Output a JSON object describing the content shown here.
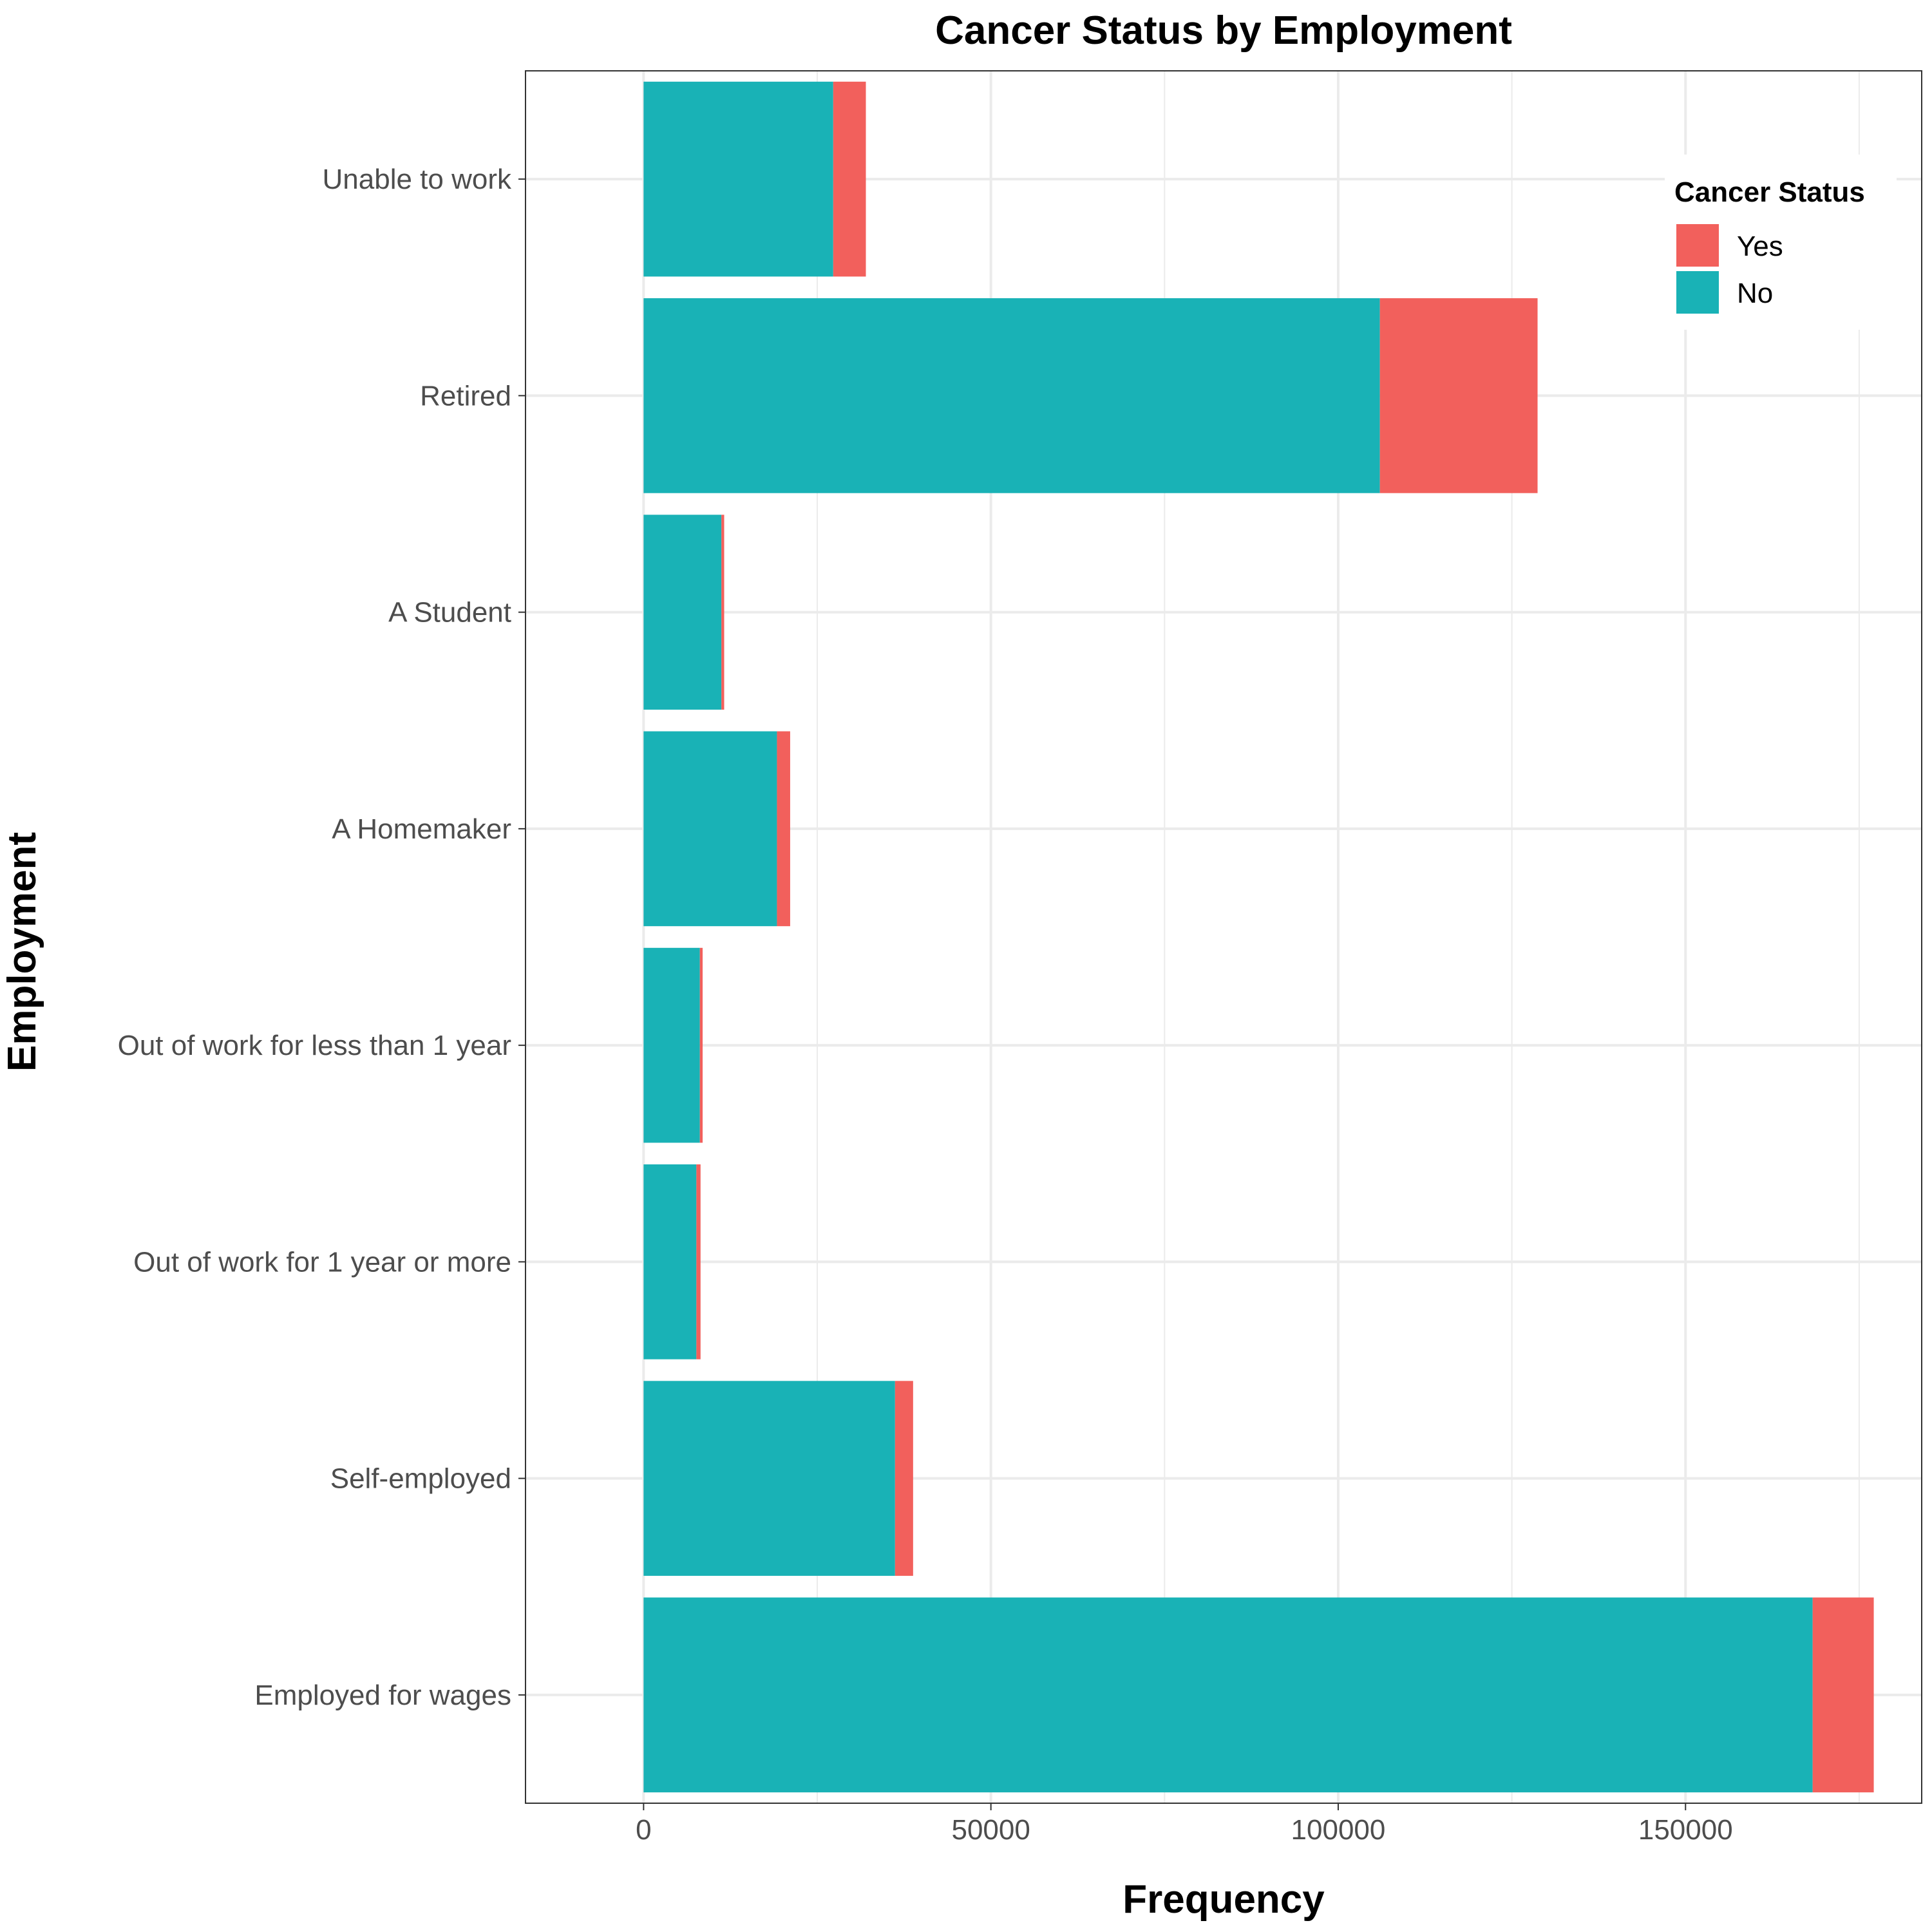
{
  "chart_data": {
    "type": "bar",
    "orientation": "horizontal",
    "stacked": true,
    "title": "Cancer Status by Employment",
    "xlabel": "Frequency",
    "ylabel": "Employment",
    "xlim": [
      -17000,
      184000
    ],
    "xticks": [
      0,
      50000,
      100000,
      150000
    ],
    "xtick_labels": [
      "0",
      "50000",
      "100000",
      "150000"
    ],
    "grid": true,
    "legend_position": "top-right",
    "categories": [
      "Unable to work",
      "Retired",
      "A Student",
      "A Homemaker",
      "Out of work for less than 1 year",
      "Out of work for 1 year or more",
      "Self-employed",
      "Employed for wages"
    ],
    "series": [
      {
        "name": "No",
        "color": "#19b2b6",
        "values": [
          27300,
          106000,
          11200,
          19200,
          8100,
          7600,
          36200,
          168300
        ]
      },
      {
        "name": "Yes",
        "color": "#f2605c",
        "values": [
          4700,
          22700,
          400,
          1900,
          400,
          600,
          2600,
          8800
        ]
      }
    ],
    "legend": {
      "title": "Cancer Status",
      "entries": [
        {
          "label": "Yes",
          "color": "#f2605c"
        },
        {
          "label": "No",
          "color": "#19b2b6"
        }
      ]
    }
  }
}
